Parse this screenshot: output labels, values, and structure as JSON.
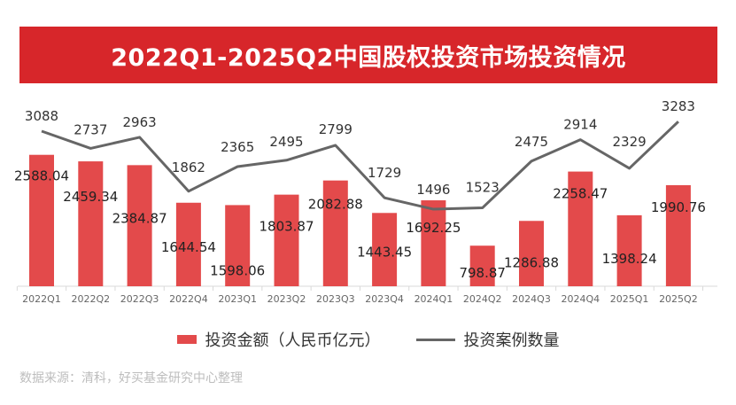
{
  "chart_data": {
    "type": "bar+line",
    "title": "2022Q1-2025Q2中国股权投资市场投资情况",
    "categories": [
      "2022Q1",
      "2022Q2",
      "2022Q3",
      "2022Q4",
      "2023Q1",
      "2023Q2",
      "2023Q3",
      "2023Q4",
      "2024Q1",
      "2024Q2",
      "2024Q3",
      "2024Q4",
      "2025Q1",
      "2025Q2"
    ],
    "series": [
      {
        "name": "投资金额（人民币亿元）",
        "type": "bar",
        "color": "#e34a4b",
        "values": [
          2588.04,
          2459.34,
          2384.87,
          1644.54,
          1598.06,
          1803.87,
          2082.88,
          1443.45,
          1692.25,
          798.87,
          1286.88,
          2258.47,
          1398.24,
          1990.76
        ]
      },
      {
        "name": "投资案例数量",
        "type": "line",
        "color": "#666666",
        "values": [
          3088,
          2737,
          2963,
          1862,
          2365,
          2495,
          2799,
          1729,
          1496,
          1523,
          2475,
          2914,
          2329,
          3283
        ]
      }
    ],
    "legend_position": "bottom",
    "grid": false
  },
  "footer": "数据来源：清科，好买基金研究中心整理"
}
